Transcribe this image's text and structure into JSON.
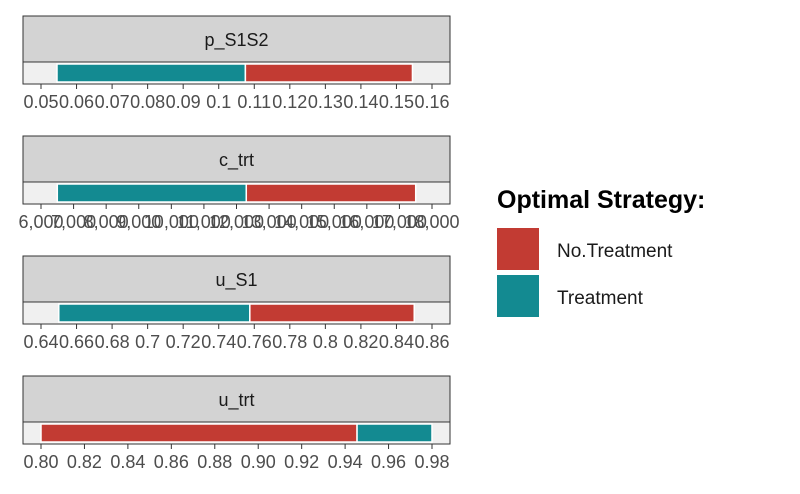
{
  "chart_data": {
    "type": "bar",
    "orientation": "horizontal",
    "legend": {
      "title": "Optimal Strategy:",
      "placement": "right",
      "items": [
        {
          "label": "No.Treatment",
          "color": "#C23B33"
        },
        {
          "label": "Treatment",
          "color": "#138A91"
        }
      ]
    },
    "panels": [
      {
        "name": "p_S1S2",
        "xlim": [
          0.05,
          0.16
        ],
        "ticks": [
          0.05,
          0.06,
          0.07,
          0.08,
          0.09,
          0.1,
          0.11,
          0.12,
          0.13,
          0.14,
          0.15,
          0.16
        ],
        "tick_labels": [
          "0.05",
          "0.06",
          "0.07",
          "0.08",
          "0.09",
          "0.1",
          "0.11",
          "0.12",
          "0.13",
          "0.14",
          "0.15",
          "0.16"
        ],
        "segments": [
          {
            "strategy": "Treatment",
            "from": 0.0545,
            "to": 0.1075
          },
          {
            "strategy": "No.Treatment",
            "from": 0.1075,
            "to": 0.1545
          }
        ]
      },
      {
        "name": "c_trt",
        "xlim": [
          6000,
          18000
        ],
        "ticks": [
          6000,
          7000,
          8000,
          9000,
          10000,
          11000,
          12000,
          13000,
          14000,
          15000,
          16000,
          17000,
          18000
        ],
        "tick_labels": [
          "6,000",
          "7,000",
          "8,000",
          "9,000",
          "10,000",
          "11,000",
          "12,000",
          "13,000",
          "14,000",
          "15,000",
          "16,000",
          "17,000",
          "18,000"
        ],
        "segments": [
          {
            "strategy": "Treatment",
            "from": 6500,
            "to": 12300
          },
          {
            "strategy": "No.Treatment",
            "from": 12300,
            "to": 17500
          }
        ]
      },
      {
        "name": "u_S1",
        "xlim": [
          0.64,
          0.86
        ],
        "ticks": [
          0.64,
          0.66,
          0.68,
          0.7,
          0.72,
          0.74,
          0.76,
          0.78,
          0.8,
          0.82,
          0.84,
          0.86
        ],
        "tick_labels": [
          "0.64",
          "0.66",
          "0.68",
          "0.7",
          "0.72",
          "0.74",
          "0.76",
          "0.78",
          "0.8",
          "0.82",
          "0.84",
          "0.86"
        ],
        "segments": [
          {
            "strategy": "Treatment",
            "from": 0.65,
            "to": 0.7575
          },
          {
            "strategy": "No.Treatment",
            "from": 0.7575,
            "to": 0.85
          }
        ]
      },
      {
        "name": "u_trt",
        "xlim": [
          0.8,
          0.98
        ],
        "ticks": [
          0.8,
          0.82,
          0.84,
          0.86,
          0.88,
          0.9,
          0.92,
          0.94,
          0.96,
          0.98
        ],
        "tick_labels": [
          "0.80",
          "0.82",
          "0.84",
          "0.86",
          "0.88",
          "0.90",
          "0.92",
          "0.94",
          "0.96",
          "0.98"
        ],
        "segments": [
          {
            "strategy": "No.Treatment",
            "from": 0.8,
            "to": 0.9455
          },
          {
            "strategy": "Treatment",
            "from": 0.9455,
            "to": 0.98
          }
        ]
      }
    ]
  }
}
